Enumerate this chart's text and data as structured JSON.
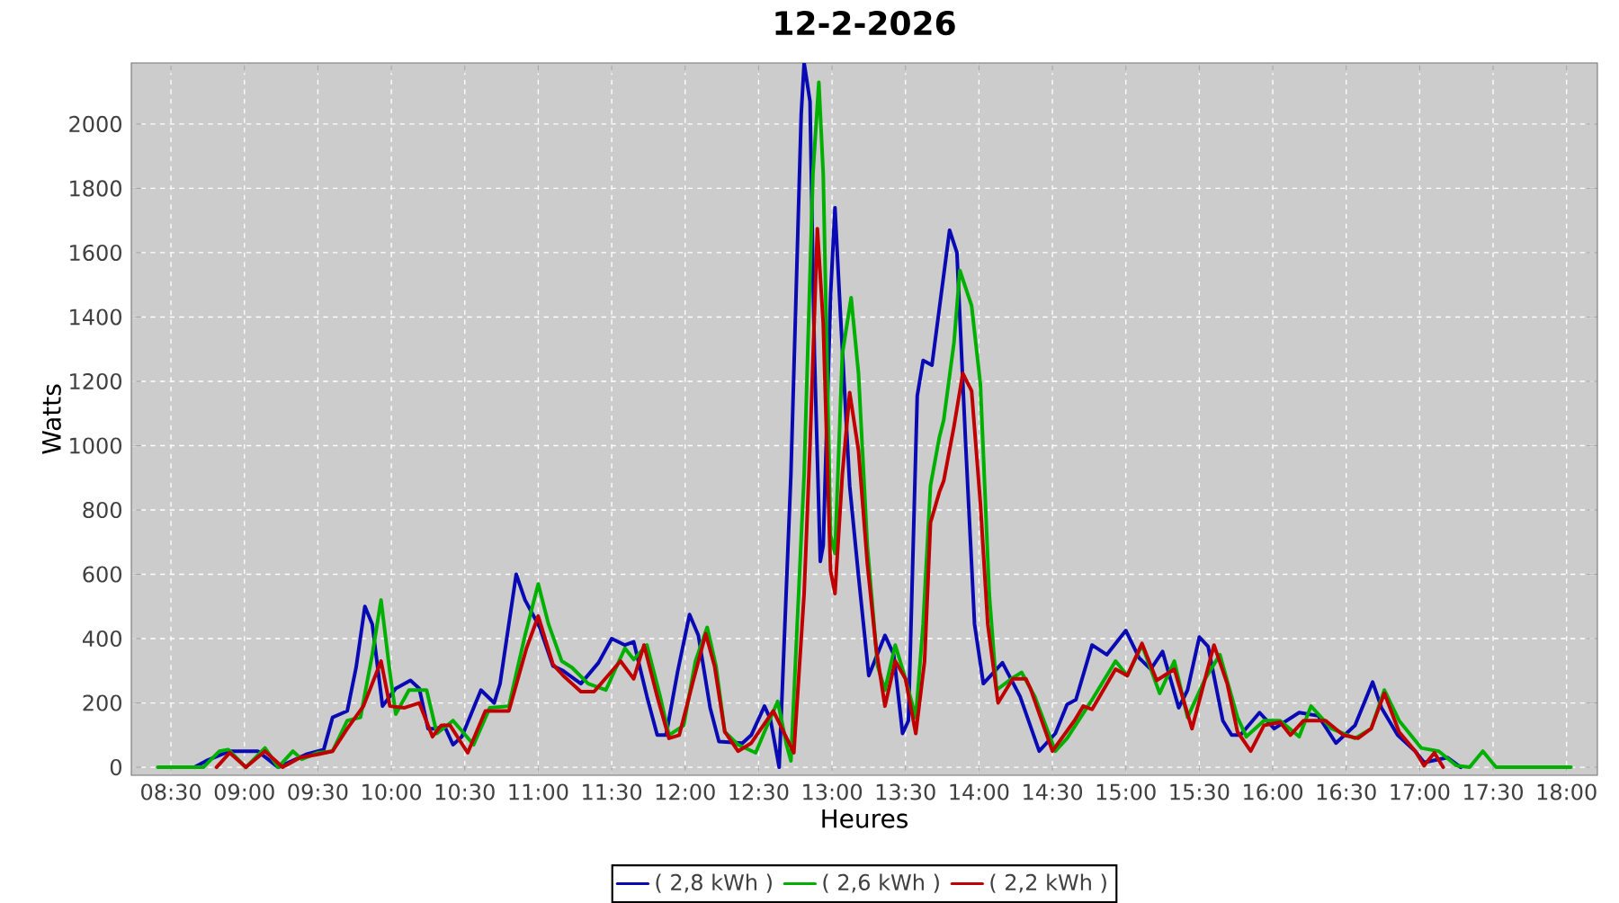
{
  "chart_data": {
    "type": "line",
    "title": "12-2-2026",
    "xlabel": "Heures",
    "ylabel": "Watts",
    "xlim": [
      8.23,
      18.21
    ],
    "ylim": [
      -25,
      2190
    ],
    "xticks": [
      {
        "value": 8.5,
        "label": "08:30"
      },
      {
        "value": 9,
        "label": "09:00"
      },
      {
        "value": 9.5,
        "label": "09:30"
      },
      {
        "value": 10,
        "label": "10:00"
      },
      {
        "value": 10.5,
        "label": "10:30"
      },
      {
        "value": 11,
        "label": "11:00"
      },
      {
        "value": 11.5,
        "label": "11:30"
      },
      {
        "value": 12,
        "label": "12:00"
      },
      {
        "value": 12.5,
        "label": "12:30"
      },
      {
        "value": 13,
        "label": "13:00"
      },
      {
        "value": 13.5,
        "label": "13:30"
      },
      {
        "value": 14,
        "label": "14:00"
      },
      {
        "value": 14.5,
        "label": "14:30"
      },
      {
        "value": 15,
        "label": "15:00"
      },
      {
        "value": 15.5,
        "label": "15:30"
      },
      {
        "value": 16,
        "label": "16:00"
      },
      {
        "value": 16.5,
        "label": "16:30"
      },
      {
        "value": 17,
        "label": "17:00"
      },
      {
        "value": 17.5,
        "label": "17:30"
      },
      {
        "value": 18,
        "label": "18:00"
      }
    ],
    "yticks": [
      0,
      200,
      400,
      600,
      800,
      1000,
      1200,
      1400,
      1600,
      1800,
      2000
    ],
    "grid": true,
    "legend": "bottom",
    "marker": "none",
    "line_style": "solid",
    "series": [
      {
        "name": "( 2,8 kWh )",
        "color": "#0a0ab4",
        "x": [
          8.66,
          8.74,
          8.9,
          9.09,
          9.23,
          9.42,
          9.54,
          9.6,
          9.7,
          9.76,
          9.82,
          9.87,
          9.94,
          10.03,
          10.13,
          10.19,
          10.25,
          10.31,
          10.36,
          10.42,
          10.48,
          10.61,
          10.7,
          10.74,
          10.85,
          10.91,
          11.01,
          11.1,
          11.17,
          11.29,
          11.41,
          11.5,
          11.59,
          11.65,
          11.74,
          11.81,
          11.87,
          11.95,
          12.03,
          12.09,
          12.17,
          12.23,
          12.39,
          12.45,
          12.54,
          12.58,
          12.64,
          12.72,
          12.79,
          12.81,
          12.85,
          12.88,
          12.92,
          12.94,
          12.99,
          13.02,
          13.05,
          13.12,
          13.18,
          13.25,
          13.36,
          13.42,
          13.48,
          13.52,
          13.58,
          13.62,
          13.68,
          13.77,
          13.8,
          13.85,
          13.91,
          13.97,
          14.03,
          14.16,
          14.28,
          14.41,
          14.52,
          14.6,
          14.66,
          14.77,
          14.87,
          15.0,
          15.09,
          15.17,
          15.25,
          15.36,
          15.42,
          15.5,
          15.56,
          15.66,
          15.72,
          15.78,
          15.91,
          16.01,
          16.18,
          16.31,
          16.43,
          16.56,
          16.68,
          16.74,
          16.85,
          16.97,
          17.03,
          17.19,
          17.28
        ],
        "values": [
          0,
          20,
          50,
          50,
          0,
          40,
          55,
          155,
          175,
          310,
          500,
          445,
          190,
          245,
          270,
          245,
          120,
          120,
          130,
          70,
          95,
          240,
          200,
          260,
          600,
          520,
          435,
          315,
          300,
          260,
          325,
          400,
          380,
          390,
          220,
          100,
          100,
          300,
          475,
          410,
          185,
          80,
          75,
          100,
          190,
          150,
          0,
          910,
          2030,
          2190,
          2070,
          1285,
          640,
          690,
          1470,
          1740,
          1470,
          875,
          595,
          285,
          410,
          350,
          105,
          145,
          1155,
          1265,
          1250,
          1565,
          1670,
          1600,
          1000,
          445,
          260,
          325,
          220,
          50,
          105,
          195,
          210,
          380,
          350,
          425,
          340,
          305,
          360,
          185,
          240,
          405,
          375,
          145,
          100,
          100,
          170,
          120,
          170,
          160,
          75,
          130,
          265,
          185,
          100,
          50,
          15,
          30,
          0
        ]
      },
      {
        "name": "( 2,6 kWh )",
        "color": "#00b000",
        "x": [
          8.41,
          8.72,
          8.83,
          8.89,
          9.01,
          9.14,
          9.23,
          9.33,
          9.39,
          9.5,
          9.6,
          9.7,
          9.79,
          9.87,
          9.93,
          9.99,
          10.03,
          10.12,
          10.24,
          10.31,
          10.42,
          10.56,
          10.67,
          10.8,
          10.91,
          11.0,
          11.07,
          11.16,
          11.23,
          11.34,
          11.46,
          11.59,
          11.65,
          11.74,
          11.83,
          11.89,
          11.99,
          12.07,
          12.15,
          12.21,
          12.27,
          12.36,
          12.48,
          12.54,
          12.63,
          12.69,
          12.72,
          12.81,
          12.87,
          12.91,
          12.94,
          12.99,
          13.02,
          13.07,
          13.13,
          13.18,
          13.24,
          13.31,
          13.36,
          13.43,
          13.5,
          13.57,
          13.62,
          13.67,
          13.73,
          13.76,
          13.83,
          13.87,
          13.95,
          14.01,
          14.07,
          14.12,
          14.22,
          14.29,
          14.38,
          14.52,
          14.6,
          14.77,
          14.93,
          15.01,
          15.11,
          15.23,
          15.33,
          15.42,
          15.54,
          15.64,
          15.76,
          15.82,
          15.94,
          16.05,
          16.18,
          16.26,
          16.4,
          16.56,
          16.67,
          16.76,
          16.86,
          17.01,
          17.13,
          17.25,
          17.34,
          17.43,
          17.52,
          18.03
        ],
        "values": [
          0,
          0,
          50,
          55,
          0,
          60,
          0,
          50,
          25,
          45,
          50,
          145,
          155,
          350,
          520,
          295,
          165,
          240,
          240,
          105,
          145,
          70,
          185,
          190,
          410,
          570,
          445,
          330,
          310,
          260,
          240,
          370,
          335,
          380,
          220,
          100,
          130,
          330,
          435,
          315,
          110,
          70,
          45,
          110,
          205,
          70,
          20,
          910,
          1845,
          2130,
          1845,
          720,
          665,
          1285,
          1460,
          1225,
          690,
          315,
          240,
          380,
          275,
          155,
          445,
          875,
          1025,
          1080,
          1320,
          1545,
          1435,
          1190,
          540,
          240,
          275,
          295,
          220,
          50,
          90,
          210,
          330,
          285,
          380,
          230,
          330,
          155,
          275,
          350,
          155,
          95,
          145,
          145,
          95,
          190,
          120,
          90,
          120,
          240,
          145,
          60,
          50,
          5,
          0,
          50,
          0,
          0
        ]
      },
      {
        "name": "( 2,2 kWh )",
        "color": "#c00000",
        "x": [
          8.81,
          8.9,
          9.01,
          9.14,
          9.26,
          9.38,
          9.5,
          9.6,
          9.7,
          9.81,
          9.93,
          9.99,
          10.09,
          10.19,
          10.28,
          10.34,
          10.4,
          10.52,
          10.64,
          10.8,
          10.92,
          11.0,
          11.1,
          11.17,
          11.29,
          11.38,
          11.56,
          11.65,
          11.72,
          11.81,
          11.89,
          11.96,
          12.05,
          12.14,
          12.2,
          12.27,
          12.36,
          12.45,
          12.6,
          12.74,
          12.81,
          12.85,
          12.9,
          12.94,
          12.99,
          13.02,
          13.07,
          13.12,
          13.18,
          13.24,
          13.3,
          13.36,
          13.43,
          13.5,
          13.57,
          13.63,
          13.67,
          13.73,
          13.76,
          13.83,
          13.89,
          13.95,
          14.01,
          14.06,
          14.13,
          14.23,
          14.32,
          14.35,
          14.5,
          14.65,
          14.71,
          14.77,
          14.93,
          15.01,
          15.11,
          15.21,
          15.33,
          15.45,
          15.6,
          15.69,
          15.76,
          15.85,
          15.94,
          16.05,
          16.12,
          16.21,
          16.36,
          16.48,
          16.58,
          16.67,
          16.76,
          16.86,
          16.97,
          17.03,
          17.1,
          17.16
        ],
        "values": [
          0,
          45,
          0,
          50,
          0,
          30,
          40,
          50,
          120,
          190,
          330,
          190,
          185,
          200,
          95,
          130,
          130,
          45,
          175,
          175,
          370,
          470,
          320,
          285,
          235,
          235,
          330,
          275,
          380,
          220,
          90,
          100,
          260,
          415,
          315,
          110,
          50,
          75,
          175,
          45,
          540,
          1000,
          1675,
          1380,
          610,
          540,
          910,
          1165,
          985,
          635,
          370,
          190,
          330,
          275,
          105,
          330,
          760,
          855,
          890,
          1060,
          1225,
          1170,
          820,
          445,
          200,
          275,
          275,
          245,
          50,
          145,
          190,
          180,
          305,
          285,
          385,
          270,
          305,
          120,
          380,
          260,
          110,
          50,
          130,
          140,
          100,
          145,
          145,
          100,
          90,
          120,
          230,
          110,
          50,
          5,
          45,
          0
        ]
      }
    ]
  }
}
